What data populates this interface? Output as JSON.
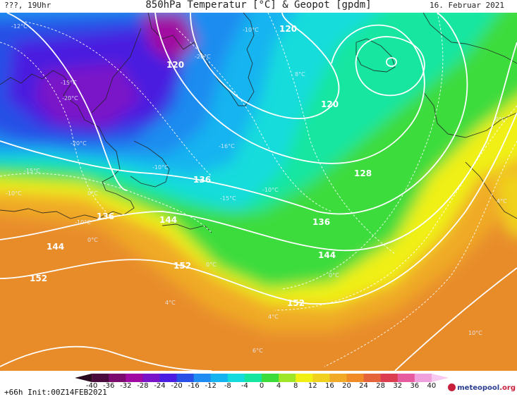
{
  "header": {
    "left": "???, 19Uhr",
    "title": "850hPa Temperatur [°C] & Geopot [gpdm]",
    "date": "16. Februar 2021"
  },
  "footer": {
    "run_info": "+66h  Init:00Z14FEB2021",
    "logo_text": "meteopool",
    "logo_suffix": ".org"
  },
  "colorbar": {
    "labels": [
      "-40",
      "-36",
      "-32",
      "-28",
      "-24",
      "-20",
      "-16",
      "-12",
      "-8",
      "-4",
      "0",
      "4",
      "8",
      "12",
      "16",
      "20",
      "24",
      "28",
      "32",
      "36",
      "40"
    ],
    "colors": [
      "#2a0a1e",
      "#4a0a3c",
      "#7a0a6e",
      "#a00aa0",
      "#7a14c8",
      "#4a1ee0",
      "#2850e6",
      "#1e8cf0",
      "#14b4f0",
      "#14dcdc",
      "#14e6a0",
      "#3cdc3c",
      "#a0e628",
      "#f0f014",
      "#f0d21e",
      "#f0aa28",
      "#f08c28",
      "#e6643c",
      "#dc3c50",
      "#e65aa0",
      "#f0a0dc",
      "#f8c8f0"
    ]
  },
  "contours": {
    "geopotential_labels": [
      "120",
      "120",
      "120",
      "128",
      "136",
      "136",
      "136",
      "144",
      "144",
      "144",
      "152",
      "152",
      "152"
    ],
    "temperature_labels": [
      "-10°C",
      "-20°C",
      "-15°C",
      "-20°C",
      "-20°C",
      "-16°C",
      "-10°C",
      "-10°C",
      "-15°C",
      "-10°C",
      "-15°C",
      "0°C",
      "0°C",
      "0°C",
      "-10°C",
      "4°C",
      "0°C",
      "8°C",
      "-12°C",
      "0°C",
      "4°C",
      "10°C",
      "6°C",
      "4°C"
    ]
  },
  "icons": {
    "logo": "meteopool-logo-icon"
  }
}
